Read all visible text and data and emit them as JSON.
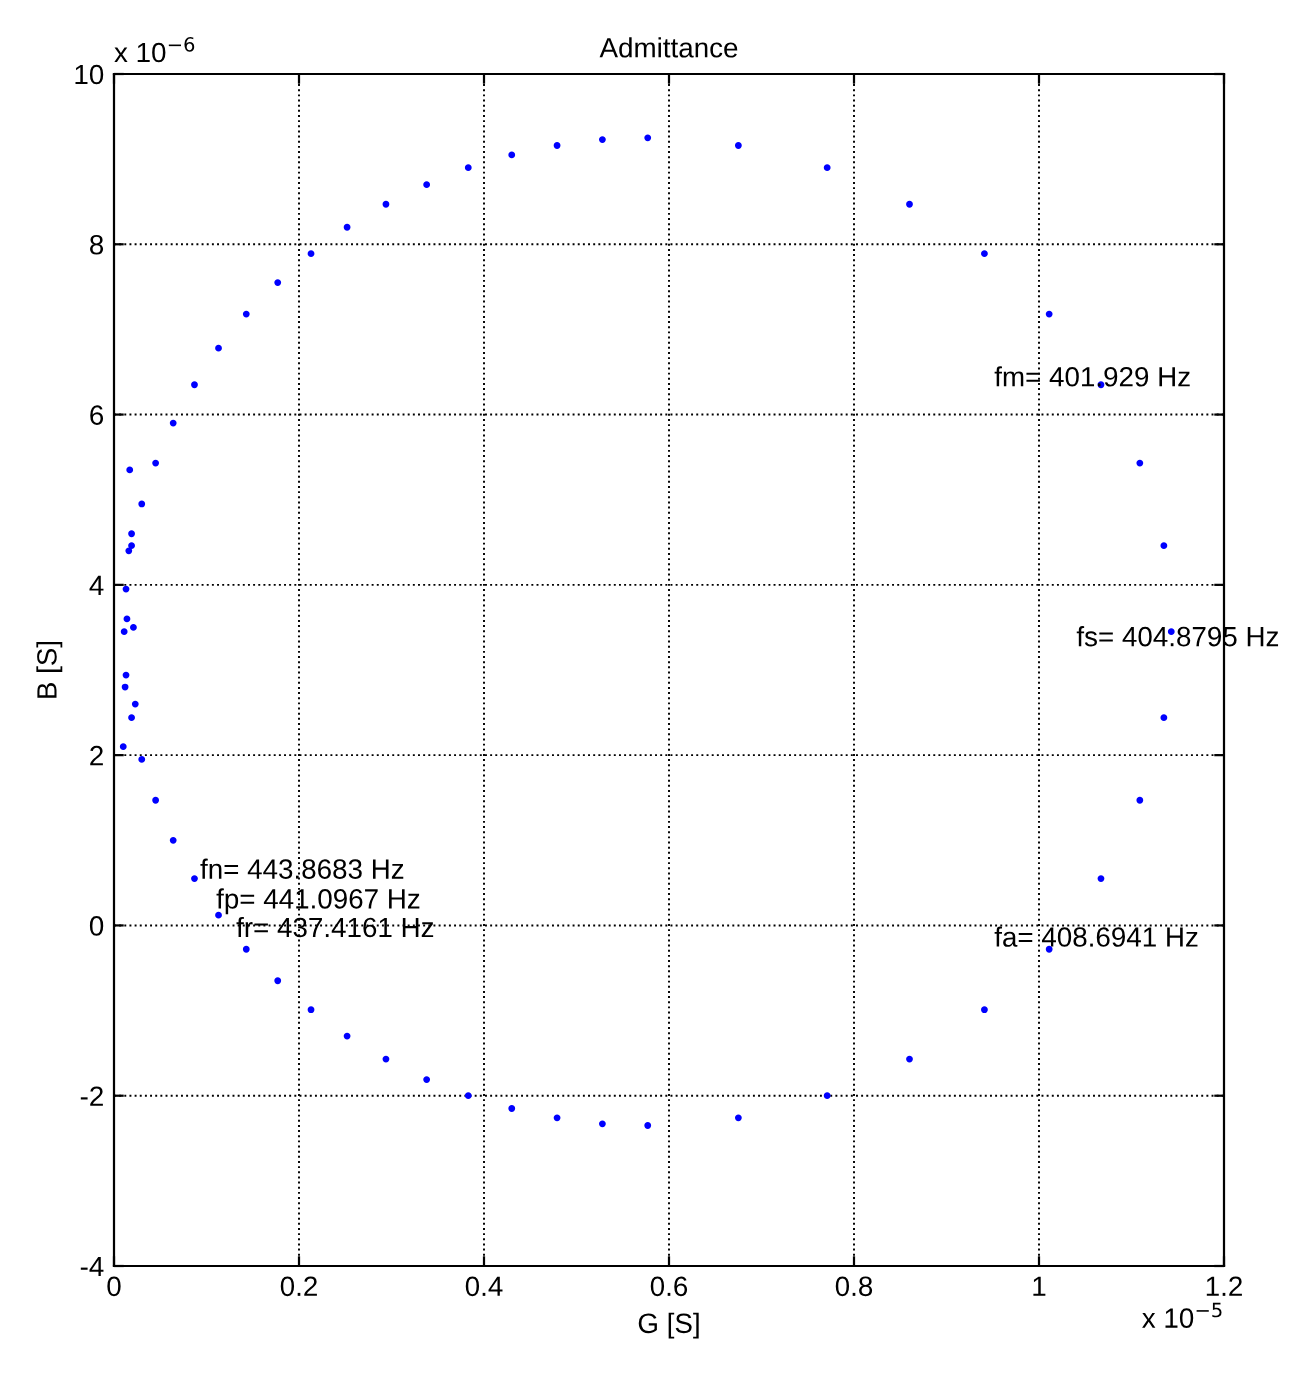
{
  "chart_data": {
    "type": "scatter",
    "title": "Admittance",
    "xlabel": "G [S]",
    "ylabel": "B [S]",
    "xlim": [
      0,
      1.2
    ],
    "ylim": [
      -4,
      10
    ],
    "xticks": [
      0,
      0.2,
      0.4,
      0.6,
      0.8,
      1,
      1.2
    ],
    "yticks": [
      -4,
      -2,
      0,
      2,
      4,
      6,
      8,
      10
    ],
    "grid": true,
    "marker": "circle",
    "series": [
      {
        "color": "#0000ff",
        "x": [
          0.577,
          0.675,
          0.771,
          0.86,
          0.941,
          1.011,
          1.067,
          1.109,
          1.135,
          1.143,
          1.135,
          1.109,
          1.067,
          1.011,
          0.941,
          0.86,
          0.771,
          0.675,
          0.577,
          0.528,
          0.479,
          0.43,
          0.383,
          0.338,
          0.294,
          0.252,
          0.213,
          0.177,
          0.143,
          0.113,
          0.087,
          0.064,
          0.045,
          0.03,
          0.019,
          0.013,
          0.011,
          0.013,
          0.019,
          0.03,
          0.045,
          0.064,
          0.087,
          0.113,
          0.143,
          0.177,
          0.213,
          0.252,
          0.294,
          0.338,
          0.383,
          0.43,
          0.479,
          0.528,
          0.01,
          0.012,
          0.014,
          0.016,
          0.017,
          0.019,
          0.021,
          0.023
        ],
        "values": [
          -2.35,
          -2.26,
          -2.0,
          -1.57,
          -0.99,
          -0.28,
          0.55,
          1.47,
          2.44,
          3.45,
          4.46,
          5.43,
          6.35,
          7.18,
          7.89,
          8.47,
          8.9,
          9.16,
          9.25,
          9.23,
          9.16,
          9.05,
          8.9,
          8.7,
          8.47,
          8.2,
          7.89,
          7.55,
          7.18,
          6.78,
          6.35,
          5.9,
          5.43,
          4.95,
          4.46,
          3.95,
          3.45,
          2.94,
          2.44,
          1.95,
          1.47,
          1.0,
          0.55,
          0.12,
          -0.28,
          -0.65,
          -0.99,
          -1.3,
          -1.57,
          -1.81,
          -2.0,
          -2.15,
          -2.26,
          -2.33,
          2.1,
          2.8,
          3.6,
          4.4,
          5.35,
          4.6,
          3.5,
          2.6
        ]
      }
    ],
    "annotations": [
      "x 10$^{−6}$",
      "x 10$^{−5}$",
      "fm= 401.929 Hz",
      "fs= 404.8795 Hz",
      "fa= 408.6941 Hz",
      "fn= 443.8683 Hz",
      "fp= 441.0967 Hz",
      "fr= 437.4161 Hz"
    ]
  }
}
